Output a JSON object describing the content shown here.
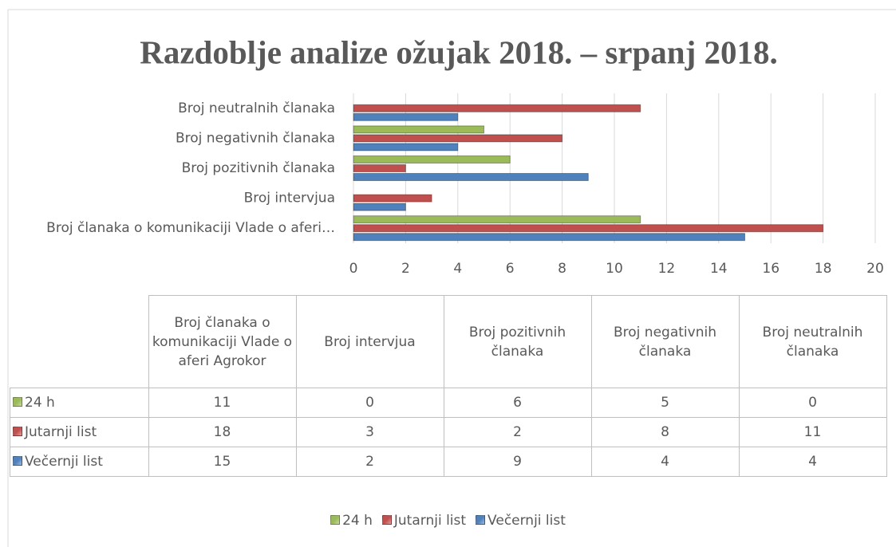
{
  "chart_data": {
    "type": "bar",
    "orientation": "horizontal",
    "title": "Razdoblje analize ožujak 2018. – srpanj 2018.",
    "categories": [
      "Broj članaka o komunikaciji Vlade o aferi Agrokor",
      "Broj intervjua",
      "Broj pozitivnih članaka",
      "Broj negativnih članaka",
      "Broj neutralnih članaka"
    ],
    "category_axis_labels": [
      "Broj članaka o komunikaciji Vlade o aferi…",
      "Broj intervjua",
      "Broj pozitivnih članaka",
      "Broj negativnih članaka",
      "Broj neutralnih članaka"
    ],
    "series": [
      {
        "name": "24 h",
        "color": "#9bbb59",
        "values": [
          11,
          0,
          6,
          5,
          0
        ]
      },
      {
        "name": "Jutarnji list",
        "color": "#c0504d",
        "values": [
          18,
          3,
          2,
          8,
          11
        ]
      },
      {
        "name": "Večernji list",
        "color": "#4f81bd",
        "values": [
          15,
          2,
          9,
          4,
          4
        ]
      }
    ],
    "xlim": [
      0,
      20
    ],
    "xticks": [
      0,
      2,
      4,
      6,
      8,
      10,
      12,
      14,
      16,
      18,
      20
    ],
    "grid": true,
    "data_table": true,
    "legend": "bottom"
  }
}
